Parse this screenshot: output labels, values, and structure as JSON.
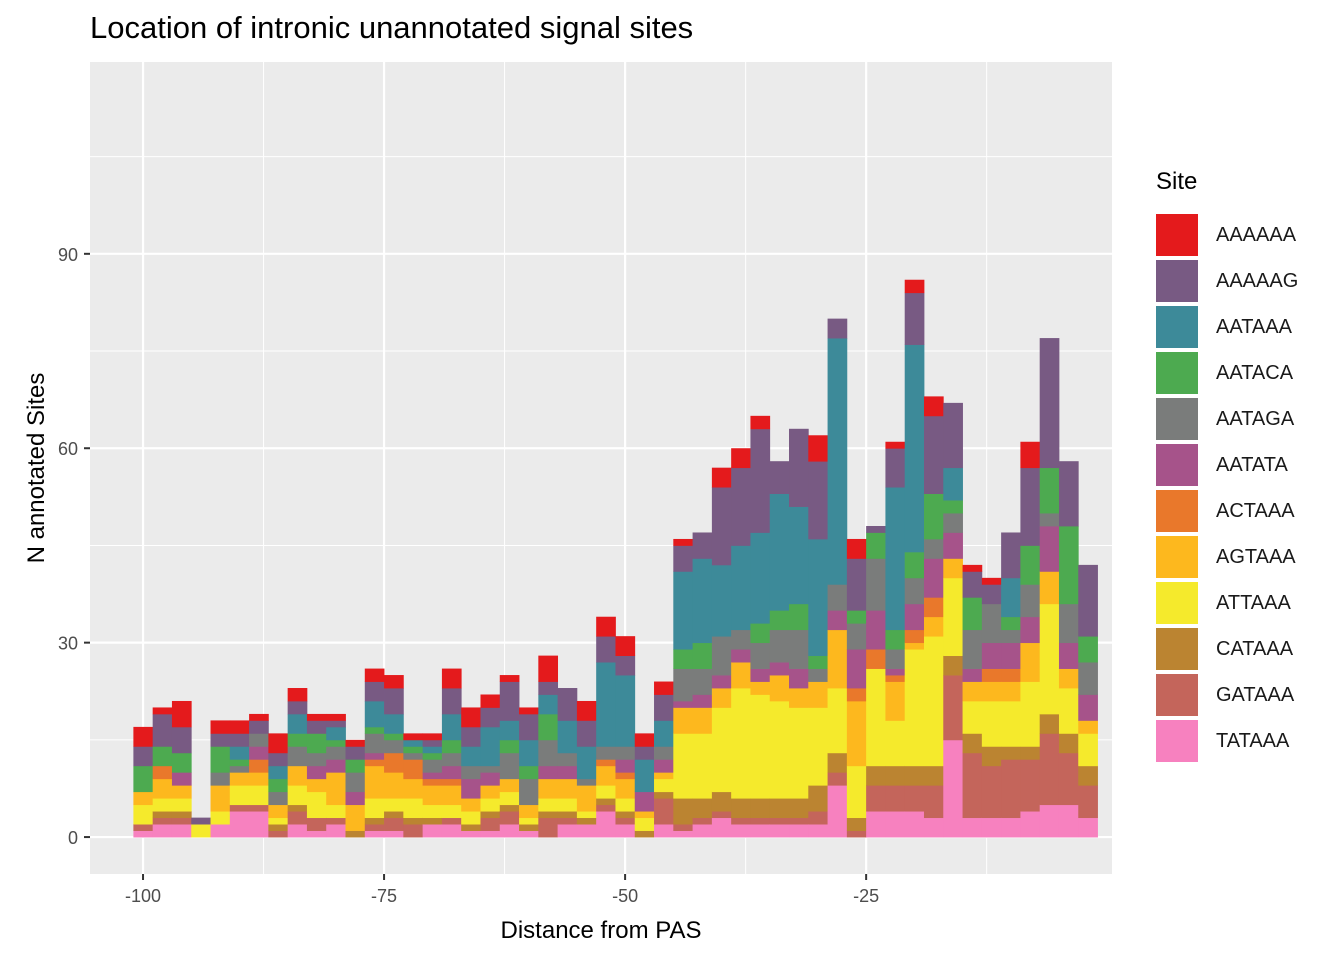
{
  "chart_data": {
    "type": "bar",
    "stacked": true,
    "title": "Location of intronic unannotated signal sites",
    "xlabel": "Distance from PAS",
    "ylabel": "N annotated Sites",
    "x_ticks": [
      -100,
      -75,
      -50,
      -25
    ],
    "y_ticks": [
      0,
      30,
      60,
      90
    ],
    "xlim": [
      -105.5,
      0.5
    ],
    "ylim": [
      -5.7,
      119.6
    ],
    "grid": true,
    "legend_title": "Site",
    "legend_position": "right",
    "x": [
      -100,
      -98,
      -96,
      -94,
      -92,
      -90,
      -88,
      -86,
      -84,
      -82,
      -80,
      -78,
      -76,
      -74,
      -72,
      -70,
      -68,
      -66,
      -64,
      -62,
      -60,
      -58,
      -56,
      -54,
      -52,
      -50,
      -48,
      -46,
      -44,
      -42,
      -40,
      -38,
      -36,
      -34,
      -32,
      -30,
      -28,
      -26,
      -24,
      -22,
      -20,
      -18,
      -16,
      -14,
      -12,
      -10,
      -8,
      -6,
      -4,
      -2
    ],
    "series": [
      {
        "name": "TATAAA",
        "color": "#F781BF",
        "values": [
          1,
          2,
          2,
          0,
          2,
          4,
          4,
          0,
          2,
          1,
          2,
          0,
          1,
          1,
          0,
          2,
          2,
          1,
          1,
          2,
          1,
          0,
          2,
          2,
          4,
          2,
          0,
          2,
          1,
          2,
          3,
          2,
          2,
          2,
          2,
          2,
          8,
          0,
          4,
          4,
          4,
          3,
          15,
          3,
          3,
          3,
          4,
          5,
          5,
          3
        ]
      },
      {
        "name": "GATAAA",
        "color": "#C4655B",
        "values": [
          1,
          1,
          1,
          0,
          0,
          1,
          1,
          1,
          2,
          2,
          1,
          0,
          1,
          2,
          2,
          0,
          1,
          0,
          2,
          2,
          0,
          3,
          1,
          0,
          1,
          1,
          0,
          4,
          1,
          1,
          1,
          1,
          1,
          1,
          1,
          2,
          2,
          1,
          4,
          4,
          4,
          5,
          10,
          10,
          8,
          9,
          8,
          11,
          8,
          5
        ]
      },
      {
        "name": "CATAAA",
        "color": "#BB8431",
        "values": [
          0,
          1,
          1,
          0,
          0,
          0,
          0,
          1,
          1,
          0,
          0,
          1,
          1,
          1,
          1,
          1,
          0,
          1,
          1,
          1,
          1,
          1,
          1,
          1,
          1,
          1,
          1,
          1,
          4,
          3,
          3,
          3,
          3,
          3,
          3,
          4,
          3,
          2,
          3,
          3,
          3,
          3,
          3,
          3,
          3,
          2,
          2,
          3,
          3,
          3
        ]
      },
      {
        "name": "ATTAAA",
        "color": "#F5EA2C",
        "values": [
          3,
          2,
          2,
          2,
          2,
          3,
          3,
          1,
          3,
          4,
          2,
          0,
          3,
          2,
          3,
          2,
          2,
          2,
          2,
          2,
          1,
          2,
          2,
          1,
          2,
          2,
          2,
          2,
          10,
          10,
          13,
          17,
          16,
          15,
          14,
          12,
          10,
          8,
          15,
          7,
          18,
          20,
          12,
          5,
          7,
          7,
          10,
          17,
          7,
          5
        ]
      },
      {
        "name": "AGTAAA",
        "color": "#FDB81E",
        "values": [
          2,
          3,
          2,
          0,
          4,
          2,
          2,
          2,
          3,
          2,
          5,
          4,
          5,
          4,
          3,
          3,
          3,
          2,
          2,
          2,
          2,
          3,
          3,
          4,
          3,
          3,
          1,
          1,
          4,
          4,
          3,
          4,
          2,
          4,
          3,
          4,
          9,
          10,
          0,
          6,
          1,
          3,
          3,
          3,
          3,
          3,
          6,
          5,
          3,
          2
        ]
      },
      {
        "name": "ACTAAA",
        "color": "#E9782B",
        "values": [
          0,
          2,
          0,
          0,
          0,
          0,
          2,
          0,
          0,
          0,
          0,
          0,
          1,
          3,
          3,
          1,
          1,
          0,
          0,
          0,
          0,
          0,
          0,
          0,
          1,
          1,
          0,
          0,
          0,
          0,
          0,
          0,
          0,
          0,
          0,
          0,
          0,
          2,
          3,
          1,
          2,
          3,
          0,
          0,
          2,
          2,
          0,
          0,
          0,
          0
        ]
      },
      {
        "name": "AATATA",
        "color": "#A6538A",
        "values": [
          0,
          0,
          0,
          0,
          0,
          0,
          0,
          0,
          0,
          0,
          2,
          1,
          0,
          0,
          0,
          1,
          0,
          0,
          0,
          0,
          0,
          0,
          0,
          0,
          0,
          0,
          0,
          0,
          0,
          0,
          0,
          0,
          0,
          0,
          0,
          0,
          0,
          0,
          0,
          0,
          0,
          0,
          0,
          0,
          0,
          0,
          0,
          0,
          0,
          0
        ]
      },
      {
        "name": "AATAGA",
        "color": "#7A7C7B",
        "values": [
          0,
          0,
          0,
          0,
          1,
          0,
          0,
          0,
          2,
          0,
          0,
          0,
          2,
          0,
          0,
          0,
          0,
          0,
          0,
          0,
          0,
          0,
          0,
          0,
          0,
          0,
          0,
          0,
          0,
          0,
          0,
          0,
          0,
          0,
          0,
          0,
          0,
          0,
          0,
          0,
          0,
          0,
          0,
          0,
          0,
          0,
          0,
          0,
          0,
          0
        ]
      },
      {
        "name": "AATACA",
        "color": "#4DAA50",
        "values": [
          0,
          0,
          0,
          0,
          0,
          0,
          0,
          0,
          0,
          0,
          0,
          0,
          0,
          0,
          0,
          0,
          0,
          0,
          0,
          0,
          0,
          0,
          0,
          0,
          0,
          0,
          0,
          0,
          0,
          0,
          0,
          0,
          0,
          0,
          0,
          0,
          0,
          0,
          0,
          0,
          0,
          0,
          0,
          0,
          0,
          0,
          0,
          0,
          0,
          0
        ]
      },
      {
        "name": "AATAAA",
        "color": "#3D8A99",
        "values": [
          0,
          0,
          0,
          0,
          0,
          0,
          0,
          0,
          0,
          0,
          0,
          0,
          0,
          0,
          0,
          0,
          0,
          0,
          0,
          0,
          0,
          0,
          0,
          0,
          0,
          0,
          0,
          0,
          0,
          0,
          0,
          0,
          0,
          0,
          0,
          0,
          0,
          0,
          0,
          0,
          0,
          0,
          0,
          0,
          0,
          0,
          0,
          0,
          0,
          0
        ]
      },
      {
        "name": "AAAAAG",
        "color": "#785A83",
        "values": [
          0,
          0,
          0,
          0,
          0,
          0,
          0,
          0,
          0,
          0,
          0,
          0,
          0,
          0,
          0,
          0,
          0,
          0,
          0,
          0,
          0,
          0,
          0,
          0,
          0,
          0,
          0,
          0,
          0,
          0,
          0,
          0,
          0,
          0,
          0,
          0,
          0,
          0,
          0,
          0,
          0,
          0,
          0,
          0,
          0,
          0,
          0,
          0,
          0,
          0
        ]
      },
      {
        "name": "AAAAAA",
        "color": "#E41A1C",
        "values": [
          0,
          0,
          0,
          0,
          0,
          0,
          0,
          0,
          0,
          0,
          0,
          0,
          0,
          0,
          0,
          0,
          0,
          0,
          0,
          0,
          0,
          0,
          0,
          0,
          0,
          0,
          0,
          0,
          0,
          0,
          0,
          0,
          0,
          0,
          0,
          0,
          0,
          0,
          0,
          0,
          0,
          0,
          0,
          0,
          0,
          0,
          0,
          0,
          0,
          0
        ]
      }
    ],
    "upper_series": {
      "AATATA": [
        0,
        0,
        2,
        0,
        0,
        0,
        2,
        0,
        0,
        2,
        0,
        1,
        1,
        0,
        0,
        0,
        2,
        3,
        2,
        0,
        0,
        2,
        2,
        0,
        0,
        2,
        3,
        2,
        1,
        2,
        2,
        2,
        2,
        2,
        3,
        0,
        3,
        6,
        6,
        1,
        4,
        6,
        4,
        2,
        4,
        4,
        4,
        7,
        4,
        4
      ],
      "AATAGA": [
        0,
        0,
        0,
        0,
        1,
        1,
        2,
        2,
        1,
        2,
        2,
        3,
        1,
        2,
        1,
        2,
        2,
        2,
        1,
        4,
        4,
        4,
        2,
        1,
        2,
        2,
        0,
        2,
        5,
        4,
        6,
        3,
        4,
        5,
        6,
        2,
        4,
        4,
        8,
        3,
        4,
        3,
        3,
        6,
        6,
        2,
        5,
        2,
        6,
        5
      ],
      "AATACA": [
        4,
        3,
        3,
        0,
        4,
        1,
        0,
        2,
        2,
        3,
        1,
        2,
        1,
        1,
        1,
        1,
        2,
        0,
        0,
        2,
        2,
        4,
        0,
        0,
        0,
        0,
        0,
        0,
        3,
        4,
        0,
        0,
        3,
        3,
        4,
        2,
        0,
        2,
        4,
        3,
        4,
        7,
        2,
        5,
        0,
        2,
        6,
        7,
        12,
        4
      ],
      "AATAAA": [
        0,
        0,
        0,
        0,
        0,
        2,
        0,
        2,
        3,
        0,
        2,
        0,
        4,
        3,
        1,
        1,
        4,
        3,
        6,
        3,
        4,
        3,
        5,
        5,
        13,
        11,
        5,
        4,
        12,
        13,
        11,
        13,
        14,
        18,
        15,
        18,
        38,
        0,
        0,
        22,
        32,
        0,
        5,
        0,
        0,
        6,
        0,
        0,
        0,
        0
      ],
      "AAAAAG": [
        3,
        5,
        4,
        1,
        2,
        2,
        2,
        2,
        2,
        2,
        1,
        2,
        3,
        4,
        0,
        1,
        4,
        3,
        3,
        6,
        4,
        2,
        5,
        4,
        4,
        3,
        2,
        4,
        4,
        4,
        12,
        12,
        16,
        5,
        12,
        12,
        3,
        8,
        1,
        6,
        8,
        12,
        10,
        4,
        3,
        7,
        12,
        20,
        10,
        11
      ],
      "AAAAAA": [
        3,
        1,
        4,
        0,
        2,
        2,
        1,
        3,
        2,
        1,
        1,
        1,
        2,
        2,
        1,
        1,
        3,
        3,
        2,
        1,
        1,
        4,
        0,
        3,
        3,
        3,
        2,
        2,
        1,
        0,
        3,
        3,
        2,
        0,
        0,
        4,
        0,
        3,
        0,
        1,
        2,
        3,
        0,
        1,
        1,
        0,
        4,
        0,
        0,
        0
      ]
    }
  }
}
